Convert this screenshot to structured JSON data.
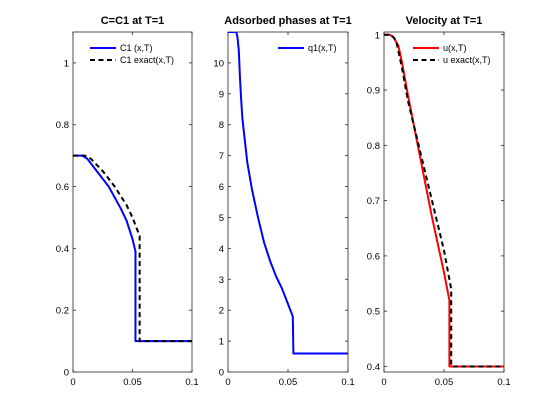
{
  "chart_data": [
    {
      "type": "line",
      "title": "C=C1 at T=1",
      "xlabel": "",
      "ylabel": "",
      "xlim": [
        0,
        0.1
      ],
      "ylim": [
        0,
        1.1
      ],
      "x_ticks": [
        "0",
        "0.05",
        "0.1"
      ],
      "y_ticks": [
        "0",
        "0.2",
        "0.4",
        "0.6",
        "0.8",
        "1"
      ],
      "legend_position": "top-right",
      "series": [
        {
          "name": "C1 (x,T)",
          "color": "#0000ff",
          "style": "solid",
          "x": [
            0,
            0.008,
            0.012,
            0.02,
            0.03,
            0.04,
            0.045,
            0.05,
            0.0525,
            0.0525,
            0.053,
            0.1
          ],
          "y": [
            0.7,
            0.7,
            0.69,
            0.65,
            0.6,
            0.53,
            0.49,
            0.43,
            0.39,
            0.1,
            0.1,
            0.1
          ]
        },
        {
          "name": "C1  exact(x,T)",
          "color": "#000000",
          "style": "dashed",
          "x": [
            0,
            0.01,
            0.015,
            0.025,
            0.035,
            0.045,
            0.05,
            0.055,
            0.056,
            0.056,
            0.1
          ],
          "y": [
            0.7,
            0.7,
            0.69,
            0.65,
            0.6,
            0.54,
            0.5,
            0.45,
            0.44,
            0.1,
            0.1
          ]
        }
      ]
    },
    {
      "type": "line",
      "title": "Adsorbed phases at T=1",
      "xlabel": "",
      "ylabel": "",
      "xlim": [
        0,
        0.1
      ],
      "ylim": [
        0,
        11
      ],
      "x_ticks": [
        "0",
        "0.05",
        "0.1"
      ],
      "y_ticks": [
        "0",
        "1",
        "2",
        "3",
        "4",
        "5",
        "6",
        "7",
        "8",
        "9",
        "10"
      ],
      "legend_position": "top-right",
      "series": [
        {
          "name": "q1(x,T)",
          "color": "#0000ff",
          "style": "solid",
          "x": [
            0,
            0.007,
            0.008,
            0.009,
            0.01,
            0.011,
            0.012,
            0.014,
            0.016,
            0.02,
            0.025,
            0.03,
            0.035,
            0.04,
            0.045,
            0.05,
            0.054,
            0.0545,
            0.055,
            0.1
          ],
          "y": [
            11.0,
            11.0,
            10.8,
            10.4,
            9.5,
            8.8,
            8.2,
            7.5,
            6.8,
            5.9,
            5.0,
            4.2,
            3.6,
            3.1,
            2.7,
            2.2,
            1.8,
            0.6,
            0.6,
            0.6
          ]
        }
      ]
    },
    {
      "type": "line",
      "title": "Velocity at T=1",
      "xlabel": "",
      "ylabel": "",
      "xlim": [
        0,
        0.1
      ],
      "ylim": [
        0.39,
        1.005
      ],
      "x_ticks": [
        "0",
        "0.05",
        "0.1"
      ],
      "y_ticks": [
        "0.4",
        "0.5",
        "0.6",
        "0.7",
        "0.8",
        "0.9",
        "1"
      ],
      "legend_position": "top-right",
      "series": [
        {
          "name": "u(x,T)",
          "color": "#ff0000",
          "style": "solid",
          "x": [
            0,
            0.005,
            0.008,
            0.012,
            0.015,
            0.02,
            0.03,
            0.04,
            0.05,
            0.0545,
            0.0545,
            0.055,
            0.1
          ],
          "y": [
            1.0,
            1.0,
            0.995,
            0.98,
            0.95,
            0.89,
            0.78,
            0.67,
            0.57,
            0.52,
            0.4,
            0.4,
            0.4
          ]
        },
        {
          "name": "u exact(x,T)",
          "color": "#000000",
          "style": "dashed",
          "x": [
            0,
            0.006,
            0.01,
            0.015,
            0.02,
            0.03,
            0.04,
            0.05,
            0.056,
            0.056,
            0.1
          ],
          "y": [
            1.0,
            1.0,
            0.99,
            0.94,
            0.88,
            0.79,
            0.7,
            0.61,
            0.54,
            0.4,
            0.4
          ]
        }
      ]
    }
  ]
}
